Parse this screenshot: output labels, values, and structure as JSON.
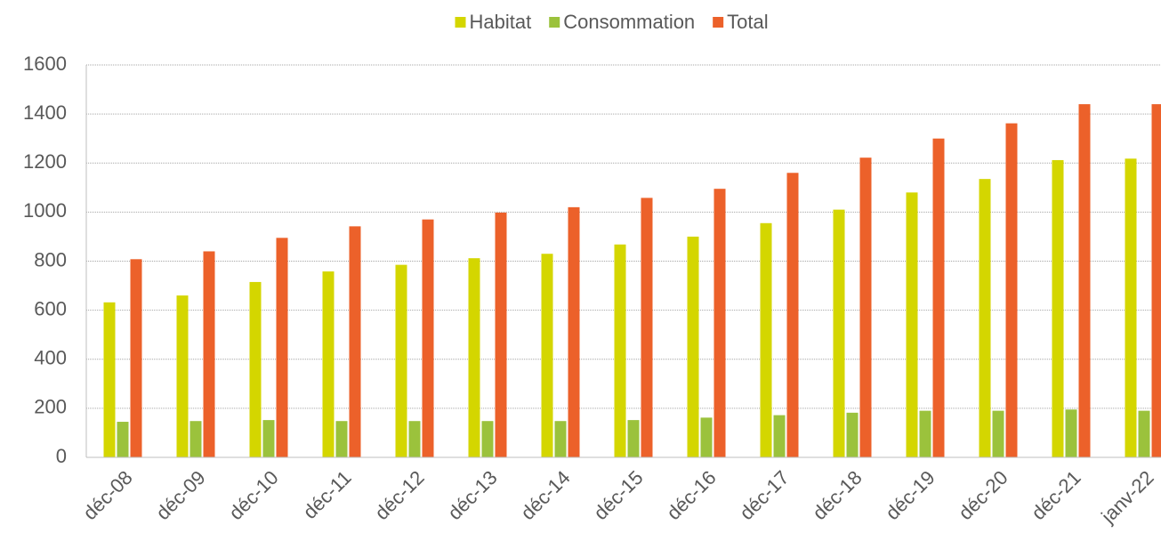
{
  "chart_data": {
    "type": "bar",
    "categories": [
      "déc-08",
      "déc-09",
      "déc-10",
      "déc-11",
      "déc-12",
      "déc-13",
      "déc-14",
      "déc-15",
      "déc-16",
      "déc-17",
      "déc-18",
      "déc-19",
      "déc-20",
      "déc-21",
      "janv-22"
    ],
    "series": [
      {
        "name": "Habitat",
        "color": "#d4d600",
        "values": [
          632,
          660,
          715,
          758,
          785,
          812,
          830,
          868,
          900,
          955,
          1010,
          1080,
          1135,
          1212,
          1218
        ]
      },
      {
        "name": "Consommation",
        "color": "#9bc23c",
        "values": [
          145,
          148,
          152,
          148,
          148,
          148,
          148,
          152,
          162,
          172,
          182,
          190,
          190,
          195,
          190
        ]
      },
      {
        "name": "Total",
        "color": "#ec612a",
        "values": [
          808,
          840,
          895,
          942,
          970,
          998,
          1020,
          1058,
          1095,
          1160,
          1222,
          1300,
          1362,
          1440,
          1440
        ]
      }
    ],
    "ylim": [
      0,
      1600
    ],
    "yticks": [
      0,
      200,
      400,
      600,
      800,
      1000,
      1200,
      1400,
      1600
    ],
    "grid": true,
    "legend": "top"
  }
}
